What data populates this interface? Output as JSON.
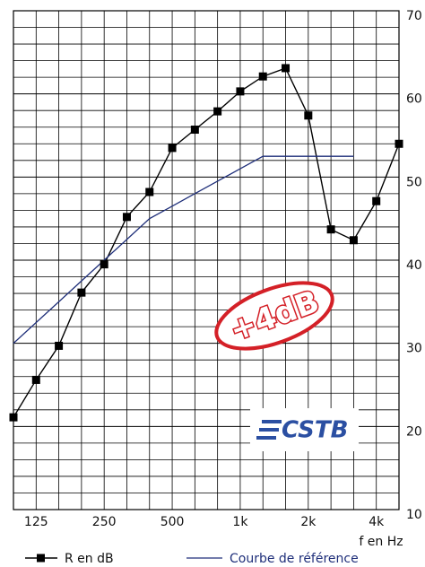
{
  "chart_data": {
    "type": "line",
    "categories": [
      null,
      "125",
      null,
      null,
      "250",
      null,
      null,
      "500",
      null,
      null,
      "1k",
      null,
      null,
      "2k",
      null,
      null,
      "4k",
      null
    ],
    "x_label": "f en Hz",
    "series": [
      {
        "name": "R en dB",
        "color": "#000000",
        "values": [
          21.1,
          25.6,
          29.7,
          36.1,
          39.5,
          45.2,
          48.2,
          53.5,
          55.7,
          57.9,
          60.3,
          62.1,
          63.1,
          57.4,
          43.7,
          42.4,
          47.1,
          54.0
        ]
      },
      {
        "name": "Courbe de référence",
        "color": "#1f2f7a",
        "values": [
          30,
          32.5,
          35,
          37.5,
          40,
          42.5,
          45,
          46.5,
          48,
          49.5,
          51,
          52.5,
          52.5,
          52.5,
          52.5,
          52.5,
          null,
          null
        ]
      }
    ],
    "ylim": [
      10,
      70
    ],
    "yticks": [
      10,
      20,
      30,
      40,
      50,
      60,
      70
    ],
    "grid": true,
    "annotations": [
      "+4dB",
      "CSTB"
    ]
  }
}
